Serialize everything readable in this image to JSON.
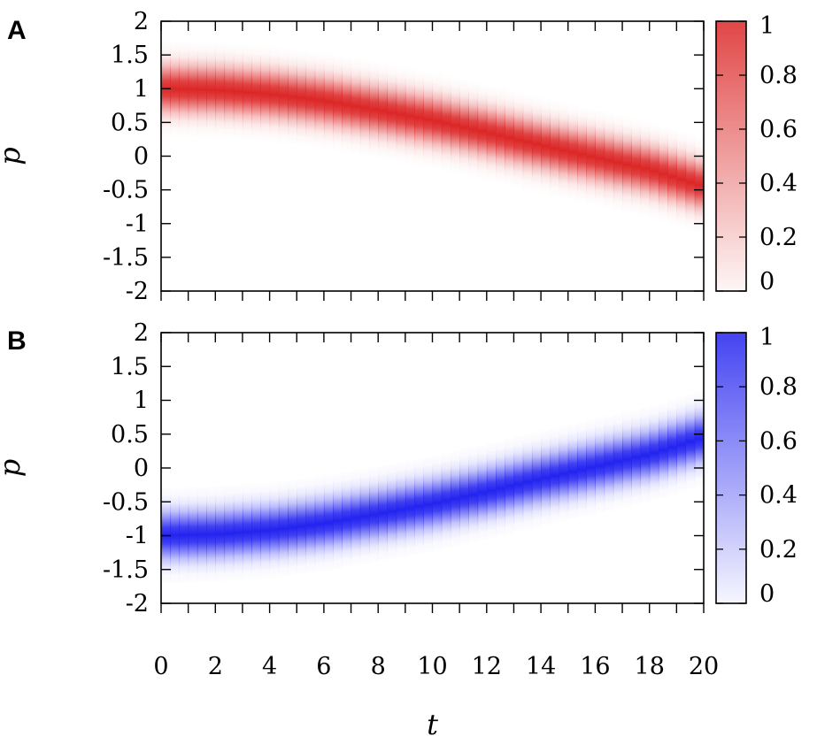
{
  "chart_data": [
    {
      "panel": "A",
      "type": "heatmap",
      "title": "",
      "xlabel": "",
      "ylabel": "p",
      "xlim": [
        0,
        20
      ],
      "ylim": [
        -2,
        2
      ],
      "x_ticks": [
        "0",
        "2",
        "4",
        "6",
        "8",
        "10",
        "12",
        "14",
        "16",
        "18",
        "20"
      ],
      "x_minor_step": 1,
      "y_ticks": [
        "-2",
        "-1.5",
        "-1",
        "-0.5",
        "0",
        "0.5",
        "1",
        "1.5",
        "2"
      ],
      "colorbar": {
        "min": 0,
        "max": 1,
        "ticks": [
          "0",
          "0.2",
          "0.4",
          "0.6",
          "0.8",
          "1"
        ],
        "color": "#dc2626"
      },
      "band_center": {
        "t": [
          0,
          2,
          4,
          6,
          8,
          10,
          12,
          14,
          16,
          18,
          20
        ],
        "p": [
          1.0,
          0.98,
          0.92,
          0.82,
          0.68,
          0.53,
          0.35,
          0.16,
          -0.02,
          -0.2,
          -0.45
        ]
      },
      "band_width": 0.22,
      "peak_value": 1
    },
    {
      "panel": "B",
      "type": "heatmap",
      "title": "",
      "xlabel": "t",
      "ylabel": "p",
      "xlim": [
        0,
        20
      ],
      "ylim": [
        -2,
        2
      ],
      "x_ticks": [
        "0",
        "2",
        "4",
        "6",
        "8",
        "10",
        "12",
        "14",
        "16",
        "18",
        "20"
      ],
      "x_minor_step": 1,
      "y_ticks": [
        "-2",
        "-1.5",
        "-1",
        "-0.5",
        "0",
        "0.5",
        "1",
        "1.5",
        "2"
      ],
      "colorbar": {
        "min": 0,
        "max": 1,
        "ticks": [
          "0",
          "0.2",
          "0.4",
          "0.6",
          "0.8",
          "1"
        ],
        "color": "#2323f0"
      },
      "band_center": {
        "t": [
          0,
          2,
          4,
          6,
          8,
          10,
          12,
          14,
          16,
          18,
          20
        ],
        "p": [
          -1.0,
          -0.98,
          -0.92,
          -0.82,
          -0.68,
          -0.53,
          -0.35,
          -0.16,
          0.02,
          0.2,
          0.45
        ]
      },
      "band_width": 0.22,
      "peak_value": 1
    }
  ]
}
